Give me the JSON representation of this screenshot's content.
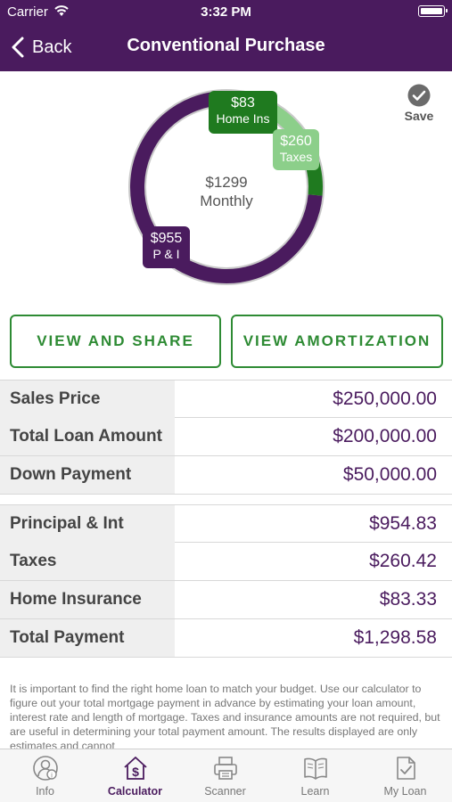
{
  "status_bar": {
    "carrier": "Carrier",
    "time": "3:32 PM"
  },
  "nav": {
    "back_label": "Back",
    "title": "Conventional Purchase"
  },
  "chart": {
    "center_amount": "$1299",
    "center_label": "Monthly",
    "home_ins": {
      "amount": "$83",
      "label": "Home Ins"
    },
    "taxes": {
      "amount": "$260",
      "label": "Taxes"
    },
    "pi": {
      "amount": "$955",
      "label": "P & I"
    },
    "save_label": "Save"
  },
  "chart_data": {
    "type": "pie",
    "categories": [
      "P & I",
      "Taxes",
      "Home Ins"
    ],
    "values": [
      955,
      260,
      83
    ],
    "total": 1299,
    "colors": [
      "#4a1b5e",
      "#8ccf8a",
      "#1f7a1f"
    ]
  },
  "buttons": {
    "view_share": "VIEW AND SHARE",
    "view_amortization": "VIEW AMORTIZATION"
  },
  "loan_table": [
    {
      "label": "Sales Price",
      "value": "$250,000.00"
    },
    {
      "label": "Total Loan Amount",
      "value": "$200,000.00"
    },
    {
      "label": "Down Payment",
      "value": "$50,000.00"
    }
  ],
  "payment_table": [
    {
      "label": "Principal & Int",
      "value": "$954.83"
    },
    {
      "label": "Taxes",
      "value": "$260.42"
    },
    {
      "label": "Home Insurance",
      "value": "$83.33"
    },
    {
      "label": "Total Payment",
      "value": "$1,298.58"
    }
  ],
  "disclaimer": "It is important to find the right home loan to match your budget. Use our calculator to figure out your total mortgage payment in advance by estimating your loan amount, interest rate and length of mortgage. Taxes and insurance amounts are not required, but are useful in determining your total payment amount. The results displayed are only estimates and cannot",
  "tabs": [
    {
      "label": "Info",
      "icon": "person-info-icon"
    },
    {
      "label": "Calculator",
      "icon": "house-dollar-icon"
    },
    {
      "label": "Scanner",
      "icon": "printer-icon"
    },
    {
      "label": "Learn",
      "icon": "book-icon"
    },
    {
      "label": "My Loan",
      "icon": "document-check-icon"
    }
  ],
  "colors": {
    "brand": "#4a1b5e",
    "accent_green": "#2e8b34",
    "home_ins": "#1f7a1f",
    "taxes": "#8ccf8a"
  }
}
